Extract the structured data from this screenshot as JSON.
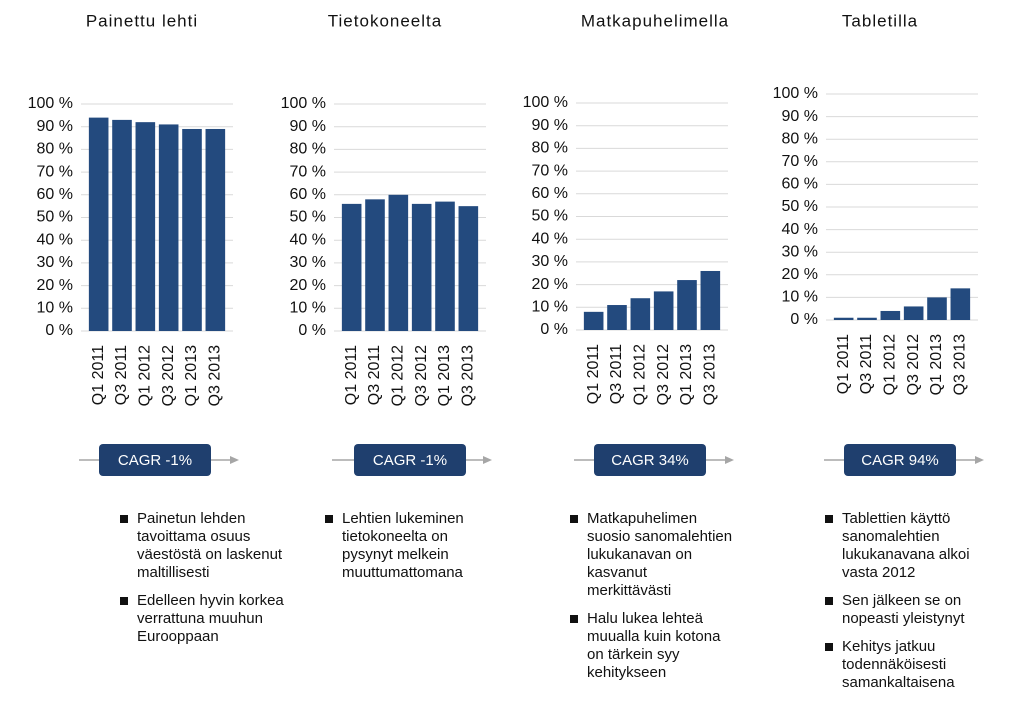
{
  "chart_data": [
    {
      "type": "bar",
      "title": "Painettu lehti",
      "categories": [
        "Q1 2011",
        "Q3 2011",
        "Q1 2012",
        "Q3 2012",
        "Q1 2013",
        "Q3 2013"
      ],
      "values": [
        94,
        93,
        92,
        91,
        89,
        89
      ],
      "color": "#234a7e",
      "ylim": [
        0,
        100
      ],
      "yticks": [
        {
          "value": 0,
          "label": "0 %"
        },
        {
          "value": 10,
          "label": "10 %"
        },
        {
          "value": 20,
          "label": "20 %"
        },
        {
          "value": 30,
          "label": "30 %"
        },
        {
          "value": 40,
          "label": "40 %"
        },
        {
          "value": 50,
          "label": "50 %"
        },
        {
          "value": 60,
          "label": "60 %"
        },
        {
          "value": 70,
          "label": "70 %"
        },
        {
          "value": 80,
          "label": "80 %"
        },
        {
          "value": 90,
          "label": "90 %"
        },
        {
          "value": 100,
          "label": "100 %"
        }
      ],
      "grid": true,
      "annotation": "CAGR -1%",
      "notes": [
        "Painetun lehden tavoittama osuus väestöstä on laskenut maltillisesti",
        "Edelleen hyvin korkea verrattuna muuhun Eurooppaan"
      ]
    },
    {
      "type": "bar",
      "title": "Tietokoneelta",
      "categories": [
        "Q1 2011",
        "Q3 2011",
        "Q1 2012",
        "Q3 2012",
        "Q1 2013",
        "Q3 2013"
      ],
      "values": [
        56,
        58,
        60,
        56,
        57,
        55
      ],
      "color": "#234a7e",
      "ylim": [
        0,
        100
      ],
      "yticks": [
        {
          "value": 0,
          "label": "0 %"
        },
        {
          "value": 10,
          "label": "10 %"
        },
        {
          "value": 20,
          "label": "20 %"
        },
        {
          "value": 30,
          "label": "30 %"
        },
        {
          "value": 40,
          "label": "40 %"
        },
        {
          "value": 50,
          "label": "50 %"
        },
        {
          "value": 60,
          "label": "60 %"
        },
        {
          "value": 70,
          "label": "70 %"
        },
        {
          "value": 80,
          "label": "80 %"
        },
        {
          "value": 90,
          "label": "90 %"
        },
        {
          "value": 100,
          "label": "100 %"
        }
      ],
      "grid": true,
      "annotation": "CAGR -1%",
      "notes": [
        "Lehtien lukeminen tietokoneelta on pysynyt melkein muuttumattomana"
      ]
    },
    {
      "type": "bar",
      "title": "Matkapuhelimella",
      "categories": [
        "Q1 2011",
        "Q3 2011",
        "Q1 2012",
        "Q3 2012",
        "Q1 2013",
        "Q3 2013"
      ],
      "values": [
        8,
        11,
        14,
        17,
        22,
        26
      ],
      "color": "#234a7e",
      "ylim": [
        0,
        100
      ],
      "yticks": [
        {
          "value": 0,
          "label": "0 %"
        },
        {
          "value": 10,
          "label": "10 %"
        },
        {
          "value": 20,
          "label": "20 %"
        },
        {
          "value": 30,
          "label": "30 %"
        },
        {
          "value": 40,
          "label": "40 %"
        },
        {
          "value": 50,
          "label": "50 %"
        },
        {
          "value": 60,
          "label": "60 %"
        },
        {
          "value": 70,
          "label": "70 %"
        },
        {
          "value": 80,
          "label": "80 %"
        },
        {
          "value": 90,
          "label": "90 %"
        },
        {
          "value": 100,
          "label": "100 %"
        }
      ],
      "grid": true,
      "annotation": "CAGR 34%",
      "notes": [
        "Matkapuhelimen suosio sanomalehtien lukukanavan on kasvanut merkittävästi",
        "Halu lukea lehteä muualla kuin kotona on tärkein syy kehitykseen"
      ]
    },
    {
      "type": "bar",
      "title": "Tabletilla",
      "categories": [
        "Q1 2011",
        "Q3 2011",
        "Q1 2012",
        "Q3 2012",
        "Q1 2013",
        "Q3 2013"
      ],
      "values": [
        1,
        1,
        4,
        6,
        10,
        14
      ],
      "color": "#234a7e",
      "ylim": [
        0,
        100
      ],
      "yticks": [
        {
          "value": 0,
          "label": "0 %"
        },
        {
          "value": 10,
          "label": "10 %"
        },
        {
          "value": 20,
          "label": "20 %"
        },
        {
          "value": 30,
          "label": "30 %"
        },
        {
          "value": 40,
          "label": "40 %"
        },
        {
          "value": 50,
          "label": "50 %"
        },
        {
          "value": 60,
          "label": "60 %"
        },
        {
          "value": 70,
          "label": "70 %"
        },
        {
          "value": 80,
          "label": "80 %"
        },
        {
          "value": 90,
          "label": "90 %"
        },
        {
          "value": 100,
          "label": "100 %"
        }
      ],
      "grid": true,
      "annotation": "CAGR 94%",
      "notes": [
        "Tablettien käyttö sanomalehtien lukukanavana alkoi vasta 2012",
        "Sen jälkeen se on nopeasti yleistynyt",
        "Kehitys jatkuu todennäköisesti samankaltaisena"
      ]
    }
  ]
}
